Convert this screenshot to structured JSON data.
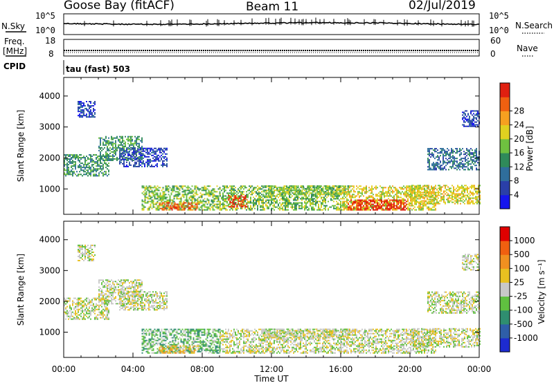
{
  "header": {
    "title": "Goose Bay (fitACF)",
    "beam": "Beam 11",
    "date": "02/Jul/2019"
  },
  "top_panels": {
    "nsky_label": "N.Sky",
    "nsky_ticks": [
      "10^5",
      "10^0"
    ],
    "nsearch_label": "N.Search",
    "nsearch_ticks": [
      "10^5",
      "10^0"
    ],
    "freq_label_1": "Freq.",
    "freq_label_2": "[MHz]",
    "freq_ticks": [
      "18",
      "8"
    ],
    "nave_label": "Nave",
    "nave_ticks": [
      "60",
      "0"
    ],
    "cpid_label": "CPID",
    "cpid_text": "tau (fast) 503"
  },
  "chart_data": [
    {
      "type": "heatmap",
      "ylabel": "Slant Range [km]",
      "xlabel": "Time UT",
      "x_ticks": [
        "00:00",
        "04:00",
        "08:00",
        "12:00",
        "16:00",
        "20:00",
        "00:00"
      ],
      "y_ticks": [
        1000,
        2000,
        3000,
        4000
      ],
      "ylim": [
        180,
        4600
      ],
      "xlim_hours": [
        0,
        24
      ],
      "colorbar": {
        "label": "Power [dB]",
        "ticks": [
          "4",
          "8",
          "12",
          "16",
          "20",
          "24",
          "28"
        ],
        "colors": [
          "#1515ee",
          "#2a3fa8",
          "#2f6e9c",
          "#2f8a5a",
          "#6fc040",
          "#e0d020",
          "#f6a020",
          "#f06010",
          "#e02010"
        ]
      },
      "echo_regions": [
        {
          "t0": 0.0,
          "t1": 2.6,
          "r0": 1400,
          "r1": 2100,
          "level": 3
        },
        {
          "t0": 0.8,
          "t1": 1.8,
          "r0": 3300,
          "r1": 3800,
          "level": 1
        },
        {
          "t0": 2.0,
          "t1": 4.5,
          "r0": 1900,
          "r1": 2700,
          "level": 3
        },
        {
          "t0": 3.2,
          "t1": 6.0,
          "r0": 1700,
          "r1": 2300,
          "level": 1
        },
        {
          "t0": 4.5,
          "t1": 9.0,
          "r0": 300,
          "r1": 1100,
          "level": 4
        },
        {
          "t0": 5.5,
          "t1": 7.8,
          "r0": 300,
          "r1": 550,
          "level": 7
        },
        {
          "t0": 9.0,
          "t1": 16.0,
          "r0": 300,
          "r1": 1100,
          "level": 4
        },
        {
          "t0": 9.5,
          "t1": 10.6,
          "r0": 400,
          "r1": 800,
          "level": 8
        },
        {
          "t0": 11.5,
          "t1": 16.5,
          "r0": 800,
          "r1": 1100,
          "level": 4
        },
        {
          "t0": 16.0,
          "t1": 21.5,
          "r0": 300,
          "r1": 1100,
          "level": 5
        },
        {
          "t0": 16.4,
          "t1": 19.8,
          "r0": 300,
          "r1": 650,
          "level": 8
        },
        {
          "t0": 20.0,
          "t1": 24.0,
          "r0": 500,
          "r1": 1100,
          "level": 5
        },
        {
          "t0": 21.0,
          "t1": 24.0,
          "r0": 1600,
          "r1": 2300,
          "level": 2
        },
        {
          "t0": 23.0,
          "t1": 24.0,
          "r0": 3000,
          "r1": 3500,
          "level": 1
        }
      ]
    },
    {
      "type": "heatmap",
      "ylabel": "Slant Range [km]",
      "xlabel": "Time UT",
      "x_ticks": [
        "00:00",
        "04:00",
        "08:00",
        "12:00",
        "16:00",
        "20:00",
        "00:00"
      ],
      "y_ticks": [
        1000,
        2000,
        3000,
        4000
      ],
      "ylim": [
        180,
        4600
      ],
      "xlim_hours": [
        0,
        24
      ],
      "colorbar": {
        "label": "Velocity [m s⁻¹]",
        "ticks": [
          "1000",
          "500",
          "100",
          "25",
          "-25",
          "-100",
          "-500",
          "-1000"
        ],
        "colors": [
          "#1d2bd0",
          "#2f5ea8",
          "#2f8e70",
          "#60c040",
          "#c8c8c8",
          "#e8c020",
          "#f09020",
          "#f06010",
          "#e00000"
        ]
      },
      "echo_regions": [
        {
          "t0": 0.0,
          "t1": 2.6,
          "r0": 1400,
          "r1": 2100,
          "level": 4
        },
        {
          "t0": 0.8,
          "t1": 1.8,
          "r0": 3300,
          "r1": 3800,
          "level": 4
        },
        {
          "t0": 2.0,
          "t1": 4.5,
          "r0": 1900,
          "r1": 2700,
          "level": 4
        },
        {
          "t0": 3.2,
          "t1": 6.0,
          "r0": 1700,
          "r1": 2300,
          "level": 4
        },
        {
          "t0": 4.5,
          "t1": 9.0,
          "r0": 300,
          "r1": 1100,
          "level": 3
        },
        {
          "t0": 5.5,
          "t1": 7.8,
          "r0": 300,
          "r1": 550,
          "level": 5
        },
        {
          "t0": 9.0,
          "t1": 16.0,
          "r0": 300,
          "r1": 1100,
          "level": 4
        },
        {
          "t0": 11.5,
          "t1": 16.5,
          "r0": 800,
          "r1": 1100,
          "level": 4
        },
        {
          "t0": 16.0,
          "t1": 21.5,
          "r0": 300,
          "r1": 1100,
          "level": 4
        },
        {
          "t0": 20.0,
          "t1": 24.0,
          "r0": 500,
          "r1": 1100,
          "level": 4
        },
        {
          "t0": 21.0,
          "t1": 24.0,
          "r0": 1600,
          "r1": 2300,
          "level": 4
        },
        {
          "t0": 23.0,
          "t1": 24.0,
          "r0": 3000,
          "r1": 3500,
          "level": 4
        }
      ]
    }
  ]
}
